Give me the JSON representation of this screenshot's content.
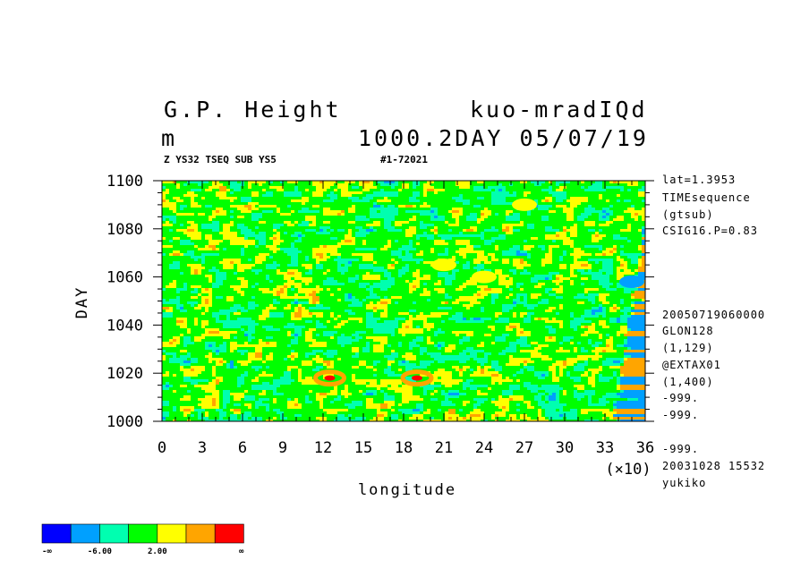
{
  "header": {
    "title_left": "G.P. Height",
    "title_right": "kuo-mradIQd",
    "units": "m",
    "info_line": "1000.2DAY 05/07/19",
    "subtitle_left": "Z YS32 TSEQ SUB YS5",
    "subtitle_right": "#1-72021"
  },
  "side_notes": [
    "lat=1.3953",
    "TIMEsequence",
    "(gtsub)",
    "CSIG16.P=0.83",
    "20050719060000",
    "GLON128",
    "(1,129)",
    "@EXTAX01",
    "(1,400)",
    "-999.",
    "-999.",
    "-999.",
    "20031028  15532",
    "yukiko"
  ],
  "chart_data": {
    "type": "heatmap",
    "title": "G.P. Height",
    "xlabel": "longitude",
    "ylabel": "DAY",
    "x_multiplier_label": "(×10)",
    "xlim": [
      0,
      36
    ],
    "ylim": [
      1000,
      1100
    ],
    "xticks": [
      "0",
      "3",
      "6",
      "9",
      "12",
      "15",
      "18",
      "21",
      "24",
      "27",
      "30",
      "33",
      "36"
    ],
    "yticks": [
      "1000",
      "1020",
      "1040",
      "1060",
      "1080",
      "1100"
    ],
    "colorbar": {
      "colors": [
        "#0000ff",
        "#00a0ff",
        "#00ffb0",
        "#00ff00",
        "#ffff00",
        "#ffa500",
        "#ff0000"
      ],
      "labels": [
        "-∞",
        "-6.00",
        "2.00",
        "∞"
      ]
    },
    "dominant_levels": [
      "#00ff00",
      "#00ffb0",
      "#ffff00"
    ],
    "highlight_regions": [
      {
        "lon": 12.5,
        "day": 1018,
        "color": "#ff0000"
      },
      {
        "lon": 19,
        "day": 1018,
        "color": "#ff0000"
      },
      {
        "lon": 21,
        "day": 1065,
        "color": "#ffff00"
      },
      {
        "lon": 24,
        "day": 1060,
        "color": "#ffff00"
      },
      {
        "lon": 35,
        "day": 1058,
        "color": "#00a0ff"
      },
      {
        "lon": 27,
        "day": 1090,
        "color": "#ffff00"
      }
    ]
  }
}
